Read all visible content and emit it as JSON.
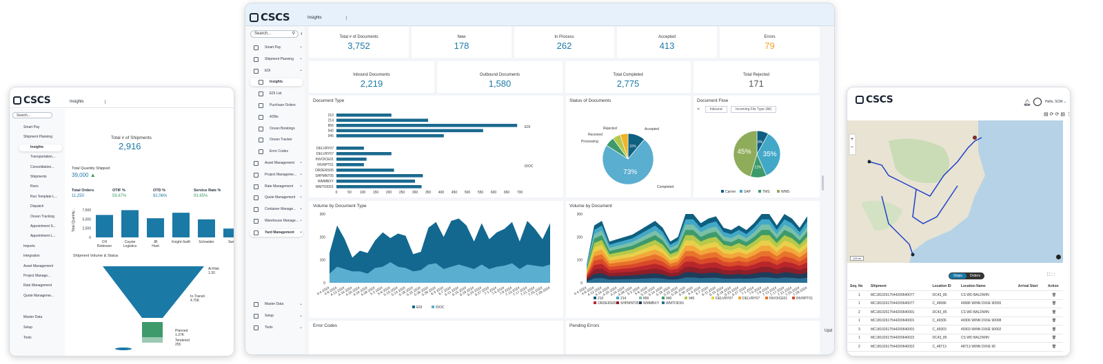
{
  "left_app": {
    "brand": "CSCS",
    "tab": "Insights",
    "search_placeholder": "Search...",
    "sidebar": [
      "Smart Pay",
      "Shipment Planning",
      "Insights",
      "Transportation...",
      "Consolidation...",
      "Shipments",
      "Runs",
      "Run Template L...",
      "Dispatch",
      "Ocean Tracking",
      "Appointment S...",
      "Appointment L...",
      "Imports",
      "Integration",
      "Asset Management",
      "Project Manage...",
      "Rate Management",
      "Quote Manageme..."
    ],
    "sidebar_bottom": [
      "Master Data",
      "Setup",
      "Tools"
    ],
    "total_shipments_label": "Total # of Shipments",
    "total_shipments": "2,916",
    "qty_label": "Total Quantity Shipped",
    "qty_value": "39,000",
    "kpi_headers": [
      "Total Orders",
      "OTIF %",
      "OTD %",
      "Service Rate %"
    ],
    "kpi_values": [
      "11,250",
      "59.67%",
      "92.06%",
      "93.65%"
    ],
    "volume_title": "Shipment Volume & Status",
    "funnel_labels": [
      "At Risk",
      "In-Transit",
      "Planned",
      "Tendered"
    ],
    "funnel_values": [
      "1.30",
      "4.75K",
      "1.37K",
      "255"
    ]
  },
  "left_chart": {
    "type": "bar",
    "ylabel": "Total Quantity...",
    "categories": [
      "CH Robinson",
      "Coyote Logistics",
      "JB Hunt",
      "Knight-Swift",
      "Schneider",
      "Swift"
    ],
    "values": [
      6100,
      7400,
      5200,
      6700,
      4900,
      2400
    ],
    "yticks": [
      "7,500",
      "5,000",
      "2,500",
      "0"
    ],
    "ylim": [
      0,
      8000
    ]
  },
  "main": {
    "brand": "CSCS",
    "tab": "Insights",
    "search_placeholder": "Search...",
    "sidebar": [
      {
        "label": "Smart Pay"
      },
      {
        "label": "Shipment Planning"
      },
      {
        "label": "EDI"
      },
      {
        "label": "Insights",
        "sub": true,
        "active": true
      },
      {
        "label": "EDI List",
        "sub": true
      },
      {
        "label": "Purchase Orders",
        "sub": true
      },
      {
        "label": "ASNs",
        "sub": true
      },
      {
        "label": "Ocean Bookings",
        "sub": true
      },
      {
        "label": "Ocean Tracker",
        "sub": true
      },
      {
        "label": "Error Codes",
        "sub": true
      },
      {
        "label": "Asset Management"
      },
      {
        "label": "Project Manageme..."
      },
      {
        "label": "Rate Management"
      },
      {
        "label": "Quote Management"
      },
      {
        "label": "Container Manage..."
      },
      {
        "label": "Warehouse Manage..."
      },
      {
        "label": "Yard Management",
        "active": true
      }
    ],
    "sidebar_bottom": [
      "Master Data",
      "Setup",
      "Tools"
    ],
    "kpi_row1": [
      {
        "label": "Total # of Documents",
        "value": "3,752"
      },
      {
        "label": "New",
        "value": "178"
      },
      {
        "label": "In Process",
        "value": "262"
      },
      {
        "label": "Accepted",
        "value": "413"
      },
      {
        "label": "Errors",
        "value": "79"
      }
    ],
    "kpi_row2": [
      {
        "label": "Inbound Documents",
        "value": "2,219"
      },
      {
        "label": "Outbound Documents",
        "value": "1,580"
      },
      {
        "label": "Total Completed",
        "value": "2,775"
      },
      {
        "label": "Total Rejected",
        "value": "171"
      }
    ],
    "error_codes_title": "Error Codes",
    "pending_errors_title": "Pending Errors",
    "side_text": "Upd",
    "colors": {
      "accent": "#1b79a6",
      "error": "#f0a020"
    }
  },
  "chart_data": [
    {
      "type": "bar",
      "title": "Document Type",
      "orientation": "horizontal",
      "categories": [
        "210",
        "214",
        "856",
        "940",
        "945",
        "DELVRY07",
        "DELVRY07",
        "INVOICE01",
        "INVRPT01",
        "ORDERS05",
        "SHPMNT05",
        "WMMBXY",
        "WMTOID01"
      ],
      "values": [
        210,
        350,
        690,
        560,
        410,
        105,
        210,
        115,
        105,
        220,
        330,
        300,
        325
      ],
      "groups": [
        {
          "name": "EDI"
        },
        {
          "name": "IDOC"
        }
      ],
      "xticks": [
        0,
        50,
        100,
        150,
        200,
        250,
        300,
        350,
        400,
        450,
        500,
        550,
        600,
        650,
        700
      ],
      "xlim": [
        0,
        700
      ]
    },
    {
      "type": "pie",
      "title": "Status of Documents",
      "labels": [
        "Accepted",
        "Completed",
        "Processing",
        "Received",
        "Rejected"
      ],
      "values": [
        11,
        73,
        6,
        5,
        5
      ],
      "slice_labels": [
        "11%",
        "73%",
        "",
        "",
        ""
      ]
    },
    {
      "type": "pie",
      "title": "Document Flow",
      "filters": [
        "Inbound",
        "Incoming File Type (All)"
      ],
      "labels": [
        "Carrier",
        "SAP",
        "TMS",
        "WMS"
      ],
      "values": [
        8,
        35,
        11,
        45
      ],
      "slice_labels": [
        "8%",
        "35%",
        "11%",
        "45%"
      ]
    },
    {
      "type": "area",
      "title": "Volume by Document Type",
      "x": [
        "4-4-2024",
        "4-8-2024",
        "4-12-2024",
        "4-16-2024",
        "4-20-2024",
        "4-24-2024",
        "4-28-2024",
        "5-2-2024",
        "5-6-2024",
        "5-10-2024",
        "5-14-2024",
        "5-18-2024",
        "5-22-2024",
        "5-26-2024",
        "5-30-2024",
        "6-3-2024",
        "6-7-2024",
        "6-11-2024",
        "6-15-2024",
        "6-19-2024",
        "6-23-2024",
        "6-27-2024",
        "7-1-2024",
        "7-5-2024",
        "7-9-2024",
        "7-13-2024",
        "7-17-2024",
        "7-21-2024",
        "7-25-2024",
        "7-29-2024"
      ],
      "series": [
        {
          "name": "EDI",
          "values": [
            90,
            180,
            130,
            60,
            90,
            90,
            120,
            150,
            105,
            145,
            140,
            75,
            80,
            160,
            180,
            140,
            200,
            200,
            180,
            120,
            180,
            130,
            150,
            160,
            180,
            120,
            190,
            160,
            120,
            180
          ]
        },
        {
          "name": "IDOC",
          "values": [
            40,
            70,
            60,
            50,
            50,
            40,
            65,
            70,
            90,
            70,
            65,
            50,
            55,
            80,
            85,
            60,
            70,
            80,
            70,
            60,
            80,
            60,
            70,
            75,
            85,
            60,
            80,
            75,
            70,
            80
          ]
        }
      ],
      "xticks": [
        "4-4 2024",
        "4-8 2024",
        "4-12 2024",
        "4-16 2024",
        "4-20 2024",
        "4-24 2024",
        "4-28 2024",
        "5-2 2024",
        "5-6 2024",
        "5-10 2024",
        "5-14 2024",
        "5-18 2024",
        "5-22 2024",
        "5-26 2024",
        "5-30 2024",
        "6-3 2024",
        "6-7 2024",
        "6-11 2024",
        "6-15 2024",
        "6-19 2024",
        "6-23 2024",
        "6-27 2024",
        "7-1 2024",
        "7-5 2024",
        "7-9 2024",
        "7-13 2024",
        "7-17 2024",
        "7-21 2024",
        "7-25 2024",
        "7-29 2024"
      ],
      "yticks": [
        0,
        100,
        200,
        300
      ],
      "ylim": [
        0,
        300
      ]
    },
    {
      "type": "area",
      "title": "Volume by Document",
      "legend": [
        "210",
        "214",
        "856",
        "940",
        "945",
        "DELVRY07",
        "DELVRY07",
        "INVOICE01",
        "INVRPT01",
        "ORDERS05",
        "SHPMNT05",
        "WMMBXY",
        "WMTOID01"
      ],
      "legend_colors": [
        "#0e5f80",
        "#43a8c8",
        "#7ac0a8",
        "#3e9a6a",
        "#b5c94a",
        "#e8d04a",
        "#f3a63a",
        "#e8732c",
        "#d9492a",
        "#b8262b",
        "#8c1f2a",
        "#1f3d5a",
        "#2a6f93"
      ],
      "xticks": [
        "4-4 2024",
        "4-8 2024",
        "4-12 2024",
        "4-16 2024",
        "4-20 2024",
        "4-24 2024",
        "4-28 2024",
        "5-2 2024",
        "5-6 2024",
        "5-10 2024",
        "5-14 2024",
        "5-18 2024",
        "5-22 2024",
        "5-26 2024",
        "5-30 2024",
        "6-3 2024",
        "6-7 2024",
        "6-11 2024",
        "6-15 2024",
        "6-19 2024",
        "6-23 2024",
        "6-27 2024",
        "7-1 2024",
        "7-5 2024",
        "7-9 2024",
        "7-13 2024",
        "7-17 2024",
        "7-21 2024",
        "7-25 2024",
        "7-29 2024"
      ],
      "yticks": [
        0,
        100,
        200,
        300
      ],
      "ylim": [
        0,
        300
      ],
      "totals": [
        80,
        250,
        270,
        180,
        190,
        200,
        210,
        230,
        250,
        270,
        240,
        180,
        200,
        300,
        310,
        260,
        280,
        290,
        240,
        230,
        250,
        230,
        260,
        300,
        320,
        250,
        300,
        280,
        240,
        290
      ]
    }
  ],
  "right_app": {
    "brand": "CSCS",
    "greeting": "Hello, SCM",
    "scale": "125 mi",
    "tabs": [
      "Stops",
      "Orders"
    ],
    "columns": [
      "Seq. No",
      "Shipment",
      "Location ID",
      "Location Name",
      "Arrival Start",
      "Action"
    ],
    "rows": [
      [
        "1",
        "MC18102617544200640077",
        "DC43_85",
        "CS WD BALDWIN"
      ],
      [
        "1",
        "MC18102617544200640077",
        "C_49586",
        "49586 WINN DIXIE 90555"
      ],
      [
        "2",
        "MC18102617544200640001",
        "DC43_85",
        "CS WD BALDWIN"
      ],
      [
        "1",
        "MC18102617544200640001",
        "C_49306",
        "49306 WINN DIXIE 90008"
      ],
      [
        "3",
        "MC18102617544200640001",
        "C_49303",
        "49303 WINN DIXIE 90002"
      ],
      [
        "1",
        "MC18102617544200640022",
        "DC43_85",
        "CS WD BALDWIN"
      ],
      [
        "2",
        "MC18102617544200640022",
        "C_48713",
        "48713 WINN DIXIE 90"
      ]
    ]
  }
}
